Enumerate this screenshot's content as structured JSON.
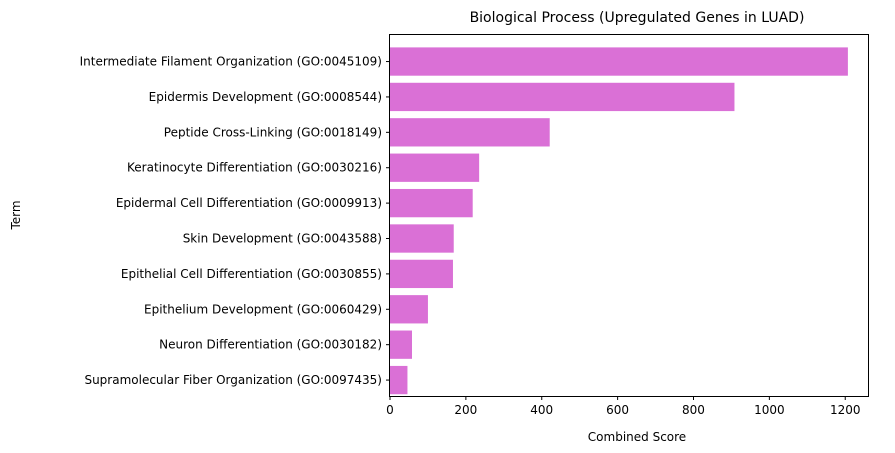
{
  "chart_data": {
    "type": "bar",
    "orientation": "horizontal",
    "title": "Biological Process (Upregulated Genes in LUAD)",
    "xlabel": "Combined Score",
    "ylabel": "Term",
    "xlim": [
      0,
      1260
    ],
    "xticks": [
      0,
      200,
      400,
      600,
      800,
      1000,
      1200
    ],
    "categories": [
      "Intermediate Filament Organization (GO:0045109)",
      "Epidermis Development (GO:0008544)",
      "Peptide Cross-Linking (GO:0018149)",
      "Keratinocyte Differentiation (GO:0030216)",
      "Epidermal Cell Differentiation (GO:0009913)",
      "Skin Development (GO:0043588)",
      "Epithelial Cell Differentiation (GO:0030855)",
      "Epithelium Development (GO:0060429)",
      "Neuron Differentiation (GO:0030182)",
      "Supramolecular Fiber Organization (GO:0097435)"
    ],
    "values": [
      1207,
      908,
      421,
      235,
      218,
      168,
      166,
      100,
      58,
      46
    ],
    "bar_color": "#da70d6",
    "grid": false,
    "legend": "none"
  }
}
